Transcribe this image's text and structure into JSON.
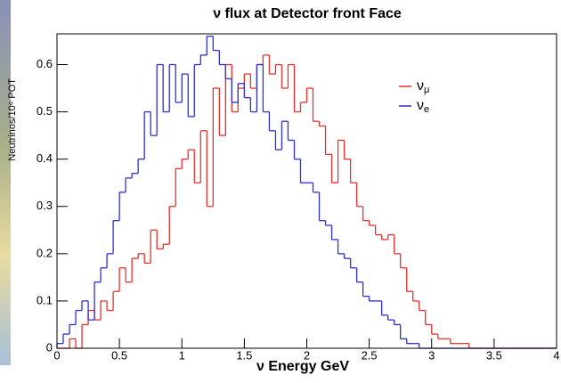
{
  "chart_data": {
    "type": "histogram",
    "title": "ν flux at Detector front Face",
    "xlabel": "ν Energy GeV",
    "ylabel": "Neutrinos/10⁶ POT",
    "bins": [
      0,
      0.05,
      0.1,
      0.15,
      0.2,
      0.25,
      0.3,
      0.35,
      0.4,
      0.45,
      0.5,
      0.55,
      0.6,
      0.65,
      0.7,
      0.75,
      0.8,
      0.85,
      0.9,
      0.95,
      1,
      1.05,
      1.1,
      1.15,
      1.2,
      1.25,
      1.3,
      1.35,
      1.4,
      1.45,
      1.5,
      1.55,
      1.6,
      1.65,
      1.7,
      1.75,
      1.8,
      1.85,
      1.9,
      1.95,
      2,
      2.05,
      2.1,
      2.15,
      2.2,
      2.25,
      2.3,
      2.35,
      2.4,
      2.45,
      2.5,
      2.55,
      2.6,
      2.65,
      2.7,
      2.75,
      2.8,
      2.85,
      2.9,
      2.95,
      3,
      3.05,
      3.1,
      3.15,
      3.2,
      3.25,
      3.3,
      3.35,
      3.4,
      3.45,
      3.5,
      3.55,
      3.6,
      3.65,
      3.7,
      3.75,
      3.8,
      3.85,
      3.9,
      3.95,
      4
    ],
    "series": [
      {
        "name": "νμ",
        "color": "#e8302a",
        "values": [
          0,
          0,
          0.02,
          0,
          0.05,
          0.08,
          0.06,
          0.1,
          0.08,
          0.12,
          0.17,
          0.14,
          0.19,
          0.2,
          0.18,
          0.25,
          0.21,
          0.22,
          0.3,
          0.38,
          0.4,
          0.42,
          0.35,
          0.46,
          0.3,
          0.55,
          0.45,
          0.6,
          0.5,
          0.55,
          0.58,
          0.55,
          0.6,
          0.62,
          0.58,
          0.6,
          0.55,
          0.6,
          0.5,
          0.52,
          0.55,
          0.48,
          0.47,
          0.41,
          0.35,
          0.44,
          0.4,
          0.35,
          0.3,
          0.27,
          0.26,
          0.24,
          0.23,
          0.24,
          0.2,
          0.17,
          0.12,
          0.1,
          0.08,
          0.05,
          0.03,
          0.02,
          0.02,
          0.01,
          0.01,
          0.01,
          0,
          0,
          0,
          0,
          0,
          0,
          0,
          0,
          0,
          0,
          0,
          0,
          0,
          0
        ]
      },
      {
        "name": "νe",
        "color": "#2b2fd6",
        "values": [
          0.01,
          0.03,
          0.05,
          0.08,
          0.1,
          0.06,
          0.14,
          0.17,
          0.2,
          0.27,
          0.33,
          0.36,
          0.37,
          0.4,
          0.5,
          0.45,
          0.6,
          0.5,
          0.6,
          0.52,
          0.58,
          0.49,
          0.6,
          0.62,
          0.66,
          0.63,
          0.6,
          0.57,
          0.52,
          0.56,
          0.53,
          0.5,
          0.6,
          0.5,
          0.46,
          0.42,
          0.48,
          0.44,
          0.4,
          0.35,
          0.35,
          0.33,
          0.27,
          0.26,
          0.23,
          0.2,
          0.19,
          0.17,
          0.14,
          0.11,
          0.1,
          0.1,
          0.07,
          0.06,
          0.05,
          0.02,
          0.01,
          0.01,
          0,
          0,
          0,
          0,
          0,
          0,
          0,
          0,
          0,
          0,
          0,
          0,
          0,
          0,
          0,
          0,
          0,
          0,
          0,
          0,
          0,
          0
        ]
      }
    ],
    "xlim": [
      0,
      4
    ],
    "ylim": [
      0,
      0.665
    ],
    "xticks": [
      0,
      0.5,
      1,
      1.5,
      2,
      2.5,
      3,
      3.5,
      4
    ],
    "yticks": [
      0,
      0.1,
      0.2,
      0.3,
      0.4,
      0.5,
      0.6
    ]
  }
}
